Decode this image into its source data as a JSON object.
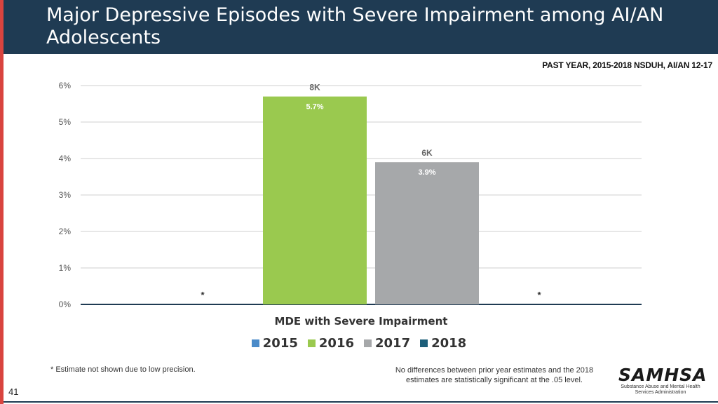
{
  "header": {
    "title": "Major Depressive Episodes with Severe Impairment among AI/AN Adolescents"
  },
  "subtitle": "PAST YEAR, 2015-2018 NSDUH, AI/AN 12-17",
  "chart_data": {
    "type": "bar",
    "xlabel": "MDE with Severe Impairment",
    "ylabel": "",
    "ylim": [
      0,
      6
    ],
    "yticks": [
      "0%",
      "1%",
      "2%",
      "3%",
      "4%",
      "5%",
      "6%"
    ],
    "grid": true,
    "legend_position": "bottom",
    "series": [
      {
        "name": "2015",
        "value": null,
        "value_label": "",
        "count_label": "",
        "suppressed_mark": "*",
        "color": "#4a8bc9"
      },
      {
        "name": "2016",
        "value": 5.7,
        "value_label": "5.7%",
        "count_label": "8K",
        "suppressed_mark": "",
        "color": "#9ac94f"
      },
      {
        "name": "2017",
        "value": 3.9,
        "value_label": "3.9%",
        "count_label": "6K",
        "suppressed_mark": "",
        "color": "#a6a8aa"
      },
      {
        "name": "2018",
        "value": null,
        "value_label": "",
        "count_label": "",
        "suppressed_mark": "*",
        "color": "#1d5f7a"
      }
    ]
  },
  "footnotes": {
    "left": "* Estimate not shown due to low precision.",
    "right": "No differences between prior year estimates and the 2018 estimates are statistically significant at the .05 level."
  },
  "logo": {
    "name": "SAMHSA",
    "sub_line1": "Substance Abuse and Mental Health",
    "sub_line2": "Services Administration"
  },
  "page_number": "41"
}
